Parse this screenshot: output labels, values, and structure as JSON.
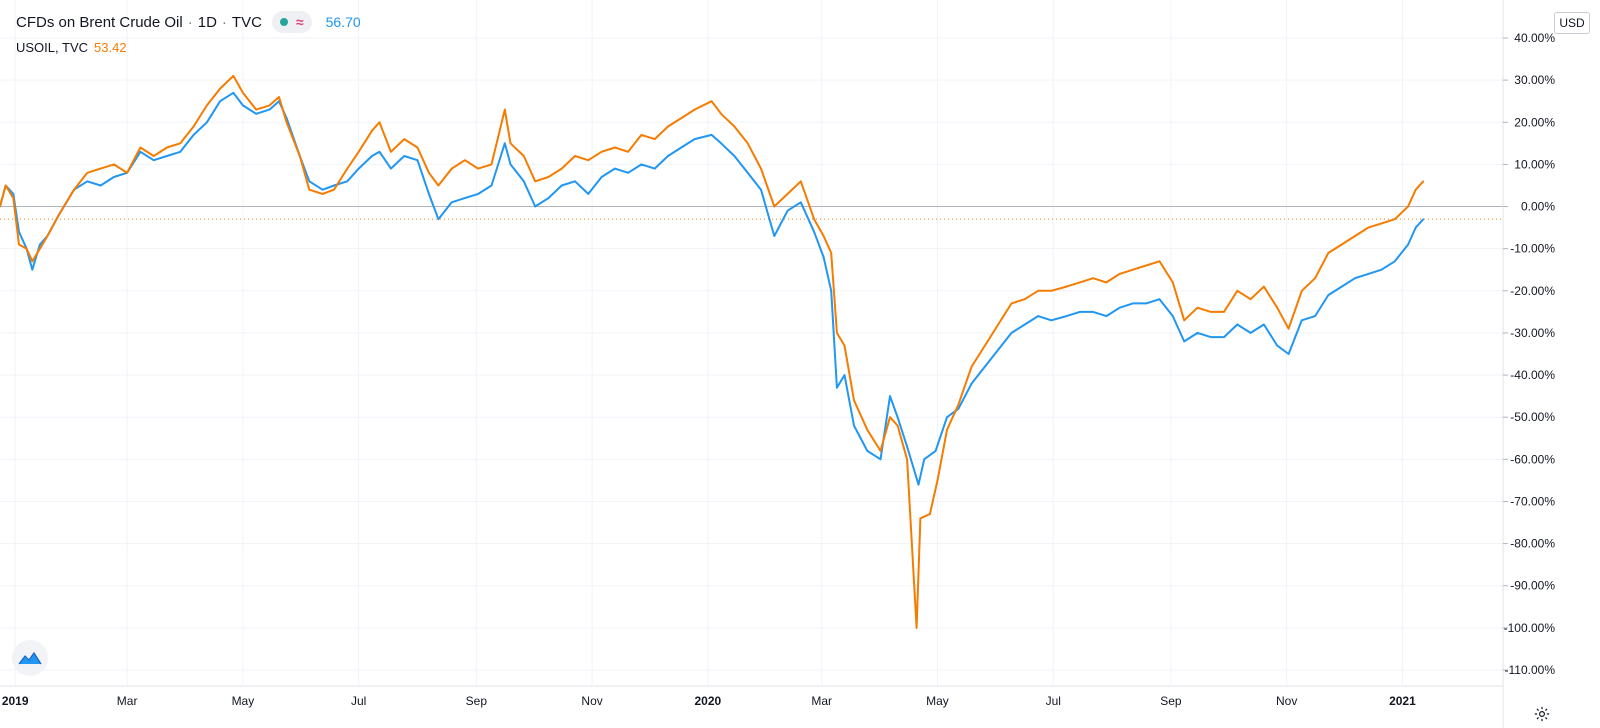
{
  "legend": {
    "symbol": "CFDs on Brent Crude Oil",
    "sep1": "·",
    "interval": "1D",
    "sep2": "·",
    "exchange": "TVC",
    "approx_icon": "≈",
    "main_value": "56.70",
    "compare_symbol": "USOIL, TVC",
    "compare_value": "53.42"
  },
  "currency_label": "USD",
  "icons": {
    "logo": "tradingview-logo-icon",
    "settings": "gear-icon",
    "status": "status-dot-icon"
  },
  "colors": {
    "brent": "#2196f3",
    "usoil": "#f57c00",
    "status": "#26a69a",
    "approx": "#e0457b"
  },
  "chart_data": {
    "type": "line",
    "ylabel": "",
    "y_unit": "%",
    "ylim": [
      -112,
      42
    ],
    "y_ticks": [
      "40.00%",
      "30.00%",
      "20.00%",
      "10.00%",
      "0.00%",
      "-10.00%",
      "-20.00%",
      "-30.00%",
      "-40.00%",
      "-50.00%",
      "-60.00%",
      "-70.00%",
      "-80.00%",
      "-90.00%",
      "-100.00%",
      "-110.00%"
    ],
    "x_ticks": [
      {
        "label": "2019",
        "date": "2019-01-01",
        "bold": true
      },
      {
        "label": "Mar",
        "date": "2019-03-01",
        "bold": false
      },
      {
        "label": "May",
        "date": "2019-05-01",
        "bold": false
      },
      {
        "label": "Jul",
        "date": "2019-07-01",
        "bold": false
      },
      {
        "label": "Sep",
        "date": "2019-09-01",
        "bold": false
      },
      {
        "label": "Nov",
        "date": "2019-11-01",
        "bold": false
      },
      {
        "label": "2020",
        "date": "2020-01-01",
        "bold": true
      },
      {
        "label": "Mar",
        "date": "2020-03-01",
        "bold": false
      },
      {
        "label": "May",
        "date": "2020-05-01",
        "bold": false
      },
      {
        "label": "Jul",
        "date": "2020-07-01",
        "bold": false
      },
      {
        "label": "Sep",
        "date": "2020-09-01",
        "bold": false
      },
      {
        "label": "Nov",
        "date": "2020-11-01",
        "bold": false
      },
      {
        "label": "2021",
        "date": "2021-01-01",
        "bold": true
      }
    ],
    "xlim": [
      "2018-12-24",
      "2021-02-23"
    ],
    "zero_line": 0,
    "last_value_line": -3,
    "grid": true,
    "series": [
      {
        "name": "CFDs on Brent Crude Oil",
        "color": "#2196f3",
        "points": [
          [
            "2018-12-24",
            0
          ],
          [
            "2018-12-27",
            5
          ],
          [
            "2018-12-31",
            3
          ],
          [
            "2019-01-03",
            -6
          ],
          [
            "2019-01-07",
            -10
          ],
          [
            "2019-01-10",
            -15
          ],
          [
            "2019-01-14",
            -9
          ],
          [
            "2019-01-18",
            -7
          ],
          [
            "2019-01-24",
            -2
          ],
          [
            "2019-02-01",
            4
          ],
          [
            "2019-02-08",
            6
          ],
          [
            "2019-02-15",
            5
          ],
          [
            "2019-02-22",
            7
          ],
          [
            "2019-03-01",
            8
          ],
          [
            "2019-03-08",
            13
          ],
          [
            "2019-03-15",
            11
          ],
          [
            "2019-03-22",
            12
          ],
          [
            "2019-03-29",
            13
          ],
          [
            "2019-04-05",
            17
          ],
          [
            "2019-04-12",
            20
          ],
          [
            "2019-04-19",
            25
          ],
          [
            "2019-04-26",
            27
          ],
          [
            "2019-05-01",
            24
          ],
          [
            "2019-05-08",
            22
          ],
          [
            "2019-05-15",
            23
          ],
          [
            "2019-05-20",
            25
          ],
          [
            "2019-05-24",
            21
          ],
          [
            "2019-05-31",
            12
          ],
          [
            "2019-06-05",
            6
          ],
          [
            "2019-06-12",
            4
          ],
          [
            "2019-06-18",
            5
          ],
          [
            "2019-06-25",
            6
          ],
          [
            "2019-07-01",
            9
          ],
          [
            "2019-07-08",
            12
          ],
          [
            "2019-07-12",
            13
          ],
          [
            "2019-07-18",
            9
          ],
          [
            "2019-07-25",
            12
          ],
          [
            "2019-08-01",
            11
          ],
          [
            "2019-08-07",
            3
          ],
          [
            "2019-08-12",
            -3
          ],
          [
            "2019-08-19",
            1
          ],
          [
            "2019-08-26",
            2
          ],
          [
            "2019-09-02",
            3
          ],
          [
            "2019-09-09",
            5
          ],
          [
            "2019-09-16",
            15
          ],
          [
            "2019-09-19",
            10
          ],
          [
            "2019-09-26",
            6
          ],
          [
            "2019-10-02",
            0
          ],
          [
            "2019-10-09",
            2
          ],
          [
            "2019-10-16",
            5
          ],
          [
            "2019-10-23",
            6
          ],
          [
            "2019-10-30",
            3
          ],
          [
            "2019-11-06",
            7
          ],
          [
            "2019-11-13",
            9
          ],
          [
            "2019-11-20",
            8
          ],
          [
            "2019-11-27",
            10
          ],
          [
            "2019-12-04",
            9
          ],
          [
            "2019-12-11",
            12
          ],
          [
            "2019-12-18",
            14
          ],
          [
            "2019-12-25",
            16
          ],
          [
            "2020-01-03",
            17
          ],
          [
            "2020-01-08",
            15
          ],
          [
            "2020-01-15",
            12
          ],
          [
            "2020-01-22",
            8
          ],
          [
            "2020-01-29",
            4
          ],
          [
            "2020-02-05",
            -7
          ],
          [
            "2020-02-12",
            -1
          ],
          [
            "2020-02-19",
            1
          ],
          [
            "2020-02-26",
            -6
          ],
          [
            "2020-03-02",
            -12
          ],
          [
            "2020-03-06",
            -20
          ],
          [
            "2020-03-09",
            -43
          ],
          [
            "2020-03-13",
            -40
          ],
          [
            "2020-03-18",
            -52
          ],
          [
            "2020-03-25",
            -58
          ],
          [
            "2020-04-01",
            -60
          ],
          [
            "2020-04-06",
            -45
          ],
          [
            "2020-04-10",
            -50
          ],
          [
            "2020-04-15",
            -57
          ],
          [
            "2020-04-21",
            -66
          ],
          [
            "2020-04-24",
            -60
          ],
          [
            "2020-04-30",
            -58
          ],
          [
            "2020-05-06",
            -50
          ],
          [
            "2020-05-12",
            -48
          ],
          [
            "2020-05-19",
            -42
          ],
          [
            "2020-05-26",
            -38
          ],
          [
            "2020-06-02",
            -34
          ],
          [
            "2020-06-09",
            -30
          ],
          [
            "2020-06-16",
            -28
          ],
          [
            "2020-06-23",
            -26
          ],
          [
            "2020-06-30",
            -27
          ],
          [
            "2020-07-08",
            -26
          ],
          [
            "2020-07-15",
            -25
          ],
          [
            "2020-07-22",
            -25
          ],
          [
            "2020-07-29",
            -26
          ],
          [
            "2020-08-05",
            -24
          ],
          [
            "2020-08-12",
            -23
          ],
          [
            "2020-08-19",
            -23
          ],
          [
            "2020-08-26",
            -22
          ],
          [
            "2020-09-02",
            -26
          ],
          [
            "2020-09-08",
            -32
          ],
          [
            "2020-09-15",
            -30
          ],
          [
            "2020-09-22",
            -31
          ],
          [
            "2020-09-29",
            -31
          ],
          [
            "2020-10-06",
            -28
          ],
          [
            "2020-10-13",
            -30
          ],
          [
            "2020-10-20",
            -28
          ],
          [
            "2020-10-27",
            -33
          ],
          [
            "2020-11-02",
            -35
          ],
          [
            "2020-11-09",
            -27
          ],
          [
            "2020-11-16",
            -26
          ],
          [
            "2020-11-23",
            -21
          ],
          [
            "2020-11-30",
            -19
          ],
          [
            "2020-12-07",
            -17
          ],
          [
            "2020-12-14",
            -16
          ],
          [
            "2020-12-21",
            -15
          ],
          [
            "2020-12-28",
            -13
          ],
          [
            "2021-01-04",
            -9
          ],
          [
            "2021-01-08",
            -5
          ],
          [
            "2021-01-12",
            -3
          ]
        ]
      },
      {
        "name": "USOIL, TVC",
        "color": "#f57c00",
        "points": [
          [
            "2018-12-24",
            0
          ],
          [
            "2018-12-27",
            5
          ],
          [
            "2018-12-31",
            2
          ],
          [
            "2019-01-03",
            -9
          ],
          [
            "2019-01-07",
            -10
          ],
          [
            "2019-01-10",
            -13
          ],
          [
            "2019-01-14",
            -10
          ],
          [
            "2019-01-18",
            -7
          ],
          [
            "2019-01-24",
            -2
          ],
          [
            "2019-02-01",
            4
          ],
          [
            "2019-02-08",
            8
          ],
          [
            "2019-02-15",
            9
          ],
          [
            "2019-02-22",
            10
          ],
          [
            "2019-03-01",
            8
          ],
          [
            "2019-03-08",
            14
          ],
          [
            "2019-03-15",
            12
          ],
          [
            "2019-03-22",
            14
          ],
          [
            "2019-03-29",
            15
          ],
          [
            "2019-04-05",
            19
          ],
          [
            "2019-04-12",
            24
          ],
          [
            "2019-04-19",
            28
          ],
          [
            "2019-04-26",
            31
          ],
          [
            "2019-05-01",
            27
          ],
          [
            "2019-05-08",
            23
          ],
          [
            "2019-05-15",
            24
          ],
          [
            "2019-05-20",
            26
          ],
          [
            "2019-05-24",
            20
          ],
          [
            "2019-05-31",
            12
          ],
          [
            "2019-06-05",
            4
          ],
          [
            "2019-06-12",
            3
          ],
          [
            "2019-06-18",
            4
          ],
          [
            "2019-06-25",
            9
          ],
          [
            "2019-07-01",
            13
          ],
          [
            "2019-07-08",
            18
          ],
          [
            "2019-07-12",
            20
          ],
          [
            "2019-07-18",
            13
          ],
          [
            "2019-07-25",
            16
          ],
          [
            "2019-08-01",
            14
          ],
          [
            "2019-08-07",
            8
          ],
          [
            "2019-08-12",
            5
          ],
          [
            "2019-08-19",
            9
          ],
          [
            "2019-08-26",
            11
          ],
          [
            "2019-09-02",
            9
          ],
          [
            "2019-09-09",
            10
          ],
          [
            "2019-09-16",
            23
          ],
          [
            "2019-09-19",
            15
          ],
          [
            "2019-09-26",
            12
          ],
          [
            "2019-10-02",
            6
          ],
          [
            "2019-10-09",
            7
          ],
          [
            "2019-10-16",
            9
          ],
          [
            "2019-10-23",
            12
          ],
          [
            "2019-10-30",
            11
          ],
          [
            "2019-11-06",
            13
          ],
          [
            "2019-11-13",
            14
          ],
          [
            "2019-11-20",
            13
          ],
          [
            "2019-11-27",
            17
          ],
          [
            "2019-12-04",
            16
          ],
          [
            "2019-12-11",
            19
          ],
          [
            "2019-12-18",
            21
          ],
          [
            "2019-12-25",
            23
          ],
          [
            "2020-01-03",
            25
          ],
          [
            "2020-01-08",
            22
          ],
          [
            "2020-01-15",
            19
          ],
          [
            "2020-01-22",
            15
          ],
          [
            "2020-01-29",
            9
          ],
          [
            "2020-02-05",
            0
          ],
          [
            "2020-02-12",
            3
          ],
          [
            "2020-02-19",
            6
          ],
          [
            "2020-02-26",
            -3
          ],
          [
            "2020-03-02",
            -7
          ],
          [
            "2020-03-06",
            -11
          ],
          [
            "2020-03-09",
            -30
          ],
          [
            "2020-03-13",
            -33
          ],
          [
            "2020-03-18",
            -46
          ],
          [
            "2020-03-25",
            -53
          ],
          [
            "2020-04-01",
            -58
          ],
          [
            "2020-04-06",
            -50
          ],
          [
            "2020-04-10",
            -52
          ],
          [
            "2020-04-15",
            -60
          ],
          [
            "2020-04-20",
            -100
          ],
          [
            "2020-04-22",
            -74
          ],
          [
            "2020-04-27",
            -73
          ],
          [
            "2020-05-01",
            -65
          ],
          [
            "2020-05-06",
            -53
          ],
          [
            "2020-05-12",
            -47
          ],
          [
            "2020-05-19",
            -38
          ],
          [
            "2020-05-26",
            -33
          ],
          [
            "2020-06-02",
            -28
          ],
          [
            "2020-06-09",
            -23
          ],
          [
            "2020-06-16",
            -22
          ],
          [
            "2020-06-23",
            -20
          ],
          [
            "2020-06-30",
            -20
          ],
          [
            "2020-07-08",
            -19
          ],
          [
            "2020-07-15",
            -18
          ],
          [
            "2020-07-22",
            -17
          ],
          [
            "2020-07-29",
            -18
          ],
          [
            "2020-08-05",
            -16
          ],
          [
            "2020-08-12",
            -15
          ],
          [
            "2020-08-19",
            -14
          ],
          [
            "2020-08-26",
            -13
          ],
          [
            "2020-09-02",
            -18
          ],
          [
            "2020-09-08",
            -27
          ],
          [
            "2020-09-15",
            -24
          ],
          [
            "2020-09-22",
            -25
          ],
          [
            "2020-09-29",
            -25
          ],
          [
            "2020-10-06",
            -20
          ],
          [
            "2020-10-13",
            -22
          ],
          [
            "2020-10-20",
            -19
          ],
          [
            "2020-10-27",
            -24
          ],
          [
            "2020-11-02",
            -29
          ],
          [
            "2020-11-09",
            -20
          ],
          [
            "2020-11-16",
            -17
          ],
          [
            "2020-11-23",
            -11
          ],
          [
            "2020-11-30",
            -9
          ],
          [
            "2020-12-07",
            -7
          ],
          [
            "2020-12-14",
            -5
          ],
          [
            "2020-12-21",
            -4
          ],
          [
            "2020-12-28",
            -3
          ],
          [
            "2021-01-04",
            0
          ],
          [
            "2021-01-08",
            4
          ],
          [
            "2021-01-12",
            6
          ]
        ]
      }
    ]
  }
}
